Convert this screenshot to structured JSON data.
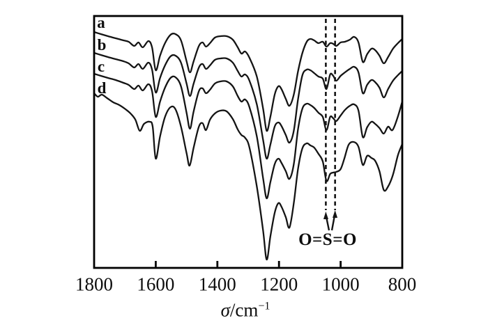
{
  "figure": {
    "background": "#ffffff",
    "line_color": "#141414",
    "frame_color": "#000000"
  },
  "axis": {
    "xlabel_sigma": "σ",
    "xlabel_unit": "/cm",
    "xlabel_sup": "−1",
    "ticks": [
      {
        "value": 1800,
        "label": "1800"
      },
      {
        "value": 1600,
        "label": "1600"
      },
      {
        "value": 1400,
        "label": "1400"
      },
      {
        "value": 1200,
        "label": "1200"
      },
      {
        "value": 1000,
        "label": "1000"
      },
      {
        "value": 800,
        "label": "800"
      }
    ]
  },
  "annotation": {
    "label": "O=S=O",
    "dashed_wavenumbers": [
      1048,
      1018
    ]
  },
  "chart_data": {
    "type": "line",
    "title": "",
    "xlabel": "σ/cm⁻¹",
    "ylabel": "",
    "x_axis": {
      "min": 800,
      "max": 1800,
      "reversed": true,
      "ticks": [
        1800,
        1600,
        1400,
        1200,
        1000,
        800
      ]
    },
    "y_axis": "none shown (transmittance, arbitrary units; curves vertically offset/stacked)",
    "grid": false,
    "legend_position": "curve labels a–d at upper left, inside plot",
    "annotations": {
      "dashed_lines_cm1": [
        1048,
        1018
      ],
      "label": "O=S=O",
      "arrows": "two arrows from label up to dashed lines"
    },
    "point_format": "[wavenumber_cm-1, y_px_from_top_of_image; plot frame top=23, bottom=385 (lower = stronger absorption)]",
    "series": [
      {
        "name": "a",
        "label_pos": [
          145,
          33
        ],
        "points": [
          [
            1800,
            46
          ],
          [
            1778,
            49
          ],
          [
            1755,
            52
          ],
          [
            1730,
            55
          ],
          [
            1705,
            58
          ],
          [
            1688,
            60
          ],
          [
            1670,
            66
          ],
          [
            1656,
            61
          ],
          [
            1642,
            68
          ],
          [
            1624,
            59
          ],
          [
            1612,
            68
          ],
          [
            1600,
            101
          ],
          [
            1586,
            80
          ],
          [
            1570,
            62
          ],
          [
            1552,
            50
          ],
          [
            1536,
            49
          ],
          [
            1518,
            58
          ],
          [
            1500,
            88
          ],
          [
            1489,
            104
          ],
          [
            1477,
            88
          ],
          [
            1460,
            66
          ],
          [
            1448,
            61
          ],
          [
            1437,
            67
          ],
          [
            1424,
            62
          ],
          [
            1408,
            54
          ],
          [
            1390,
            52
          ],
          [
            1370,
            52
          ],
          [
            1350,
            57
          ],
          [
            1334,
            68
          ],
          [
            1322,
            77
          ],
          [
            1310,
            74
          ],
          [
            1296,
            83
          ],
          [
            1272,
            110
          ],
          [
            1252,
            155
          ],
          [
            1240,
            188
          ],
          [
            1228,
            168
          ],
          [
            1214,
            136
          ],
          [
            1202,
            124
          ],
          [
            1192,
            128
          ],
          [
            1178,
            142
          ],
          [
            1166,
            152
          ],
          [
            1152,
            136
          ],
          [
            1138,
            102
          ],
          [
            1124,
            76
          ],
          [
            1110,
            60
          ],
          [
            1098,
            56
          ],
          [
            1086,
            58
          ],
          [
            1072,
            62
          ],
          [
            1058,
            60
          ],
          [
            1046,
            67
          ],
          [
            1034,
            62
          ],
          [
            1024,
            63
          ],
          [
            1014,
            66
          ],
          [
            1000,
            61
          ],
          [
            986,
            60
          ],
          [
            970,
            57
          ],
          [
            956,
            53
          ],
          [
            942,
            61
          ],
          [
            928,
            89
          ],
          [
            914,
            78
          ],
          [
            900,
            70
          ],
          [
            888,
            72
          ],
          [
            874,
            80
          ],
          [
            860,
            91
          ],
          [
            846,
            82
          ],
          [
            830,
            70
          ],
          [
            814,
            62
          ],
          [
            800,
            56
          ]
        ]
      },
      {
        "name": "b",
        "label_pos": [
          146,
          65
        ],
        "points": [
          [
            1800,
            76
          ],
          [
            1778,
            79
          ],
          [
            1755,
            82
          ],
          [
            1730,
            85
          ],
          [
            1705,
            88
          ],
          [
            1688,
            91
          ],
          [
            1670,
            97
          ],
          [
            1656,
            92
          ],
          [
            1642,
            99
          ],
          [
            1624,
            90
          ],
          [
            1612,
            100
          ],
          [
            1600,
            133
          ],
          [
            1586,
            112
          ],
          [
            1570,
            94
          ],
          [
            1552,
            81
          ],
          [
            1536,
            80
          ],
          [
            1518,
            90
          ],
          [
            1500,
            120
          ],
          [
            1489,
            138
          ],
          [
            1477,
            120
          ],
          [
            1460,
            97
          ],
          [
            1448,
            92
          ],
          [
            1437,
            99
          ],
          [
            1424,
            94
          ],
          [
            1408,
            86
          ],
          [
            1390,
            84
          ],
          [
            1370,
            84
          ],
          [
            1350,
            90
          ],
          [
            1334,
            102
          ],
          [
            1322,
            110
          ],
          [
            1310,
            107
          ],
          [
            1296,
            116
          ],
          [
            1272,
            150
          ],
          [
            1252,
            200
          ],
          [
            1240,
            228
          ],
          [
            1228,
            208
          ],
          [
            1214,
            182
          ],
          [
            1202,
            176
          ],
          [
            1192,
            181
          ],
          [
            1178,
            194
          ],
          [
            1166,
            205
          ],
          [
            1152,
            188
          ],
          [
            1138,
            142
          ],
          [
            1124,
            108
          ],
          [
            1110,
            100
          ],
          [
            1098,
            101
          ],
          [
            1086,
            105
          ],
          [
            1072,
            110
          ],
          [
            1058,
            113
          ],
          [
            1046,
            128
          ],
          [
            1034,
            107
          ],
          [
            1024,
            109
          ],
          [
            1014,
            116
          ],
          [
            1000,
            109
          ],
          [
            986,
            104
          ],
          [
            970,
            99
          ],
          [
            956,
            96
          ],
          [
            942,
            104
          ],
          [
            928,
            134
          ],
          [
            914,
            122
          ],
          [
            900,
            115
          ],
          [
            888,
            118
          ],
          [
            874,
            126
          ],
          [
            860,
            140
          ],
          [
            846,
            128
          ],
          [
            830,
            116
          ],
          [
            814,
            108
          ],
          [
            800,
            102
          ]
        ]
      },
      {
        "name": "c",
        "label_pos": [
          145,
          96
        ],
        "points": [
          [
            1800,
            106
          ],
          [
            1778,
            109
          ],
          [
            1755,
            112
          ],
          [
            1730,
            115
          ],
          [
            1705,
            119
          ],
          [
            1688,
            122
          ],
          [
            1670,
            128
          ],
          [
            1656,
            123
          ],
          [
            1642,
            130
          ],
          [
            1624,
            121
          ],
          [
            1612,
            131
          ],
          [
            1600,
            168
          ],
          [
            1586,
            146
          ],
          [
            1570,
            126
          ],
          [
            1552,
            112
          ],
          [
            1536,
            111
          ],
          [
            1518,
            124
          ],
          [
            1500,
            162
          ],
          [
            1489,
            185
          ],
          [
            1477,
            160
          ],
          [
            1460,
            131
          ],
          [
            1448,
            127
          ],
          [
            1437,
            134
          ],
          [
            1424,
            129
          ],
          [
            1408,
            120
          ],
          [
            1390,
            117
          ],
          [
            1370,
            117
          ],
          [
            1350,
            124
          ],
          [
            1334,
            138
          ],
          [
            1322,
            146
          ],
          [
            1310,
            143
          ],
          [
            1296,
            154
          ],
          [
            1272,
            196
          ],
          [
            1252,
            255
          ],
          [
            1240,
            285
          ],
          [
            1228,
            262
          ],
          [
            1214,
            236
          ],
          [
            1202,
            228
          ],
          [
            1192,
            234
          ],
          [
            1178,
            246
          ],
          [
            1166,
            257
          ],
          [
            1152,
            236
          ],
          [
            1138,
            185
          ],
          [
            1124,
            156
          ],
          [
            1110,
            149
          ],
          [
            1098,
            151
          ],
          [
            1086,
            155
          ],
          [
            1072,
            162
          ],
          [
            1058,
            168
          ],
          [
            1046,
            187
          ],
          [
            1034,
            168
          ],
          [
            1024,
            170
          ],
          [
            1014,
            174
          ],
          [
            1000,
            166
          ],
          [
            986,
            158
          ],
          [
            970,
            152
          ],
          [
            956,
            150
          ],
          [
            942,
            159
          ],
          [
            928,
            197
          ],
          [
            914,
            183
          ],
          [
            900,
            175
          ],
          [
            888,
            178
          ],
          [
            874,
            184
          ],
          [
            860,
            192
          ],
          [
            846,
            182
          ],
          [
            832,
            187
          ],
          [
            816,
            170
          ],
          [
            800,
            146
          ]
        ]
      },
      {
        "name": "d",
        "label_pos": [
          146,
          127
        ],
        "points": [
          [
            1800,
            134
          ],
          [
            1788,
            139
          ],
          [
            1775,
            136
          ],
          [
            1758,
            141
          ],
          [
            1738,
            147
          ],
          [
            1718,
            151
          ],
          [
            1698,
            157
          ],
          [
            1682,
            163
          ],
          [
            1666,
            172
          ],
          [
            1652,
            188
          ],
          [
            1638,
            178
          ],
          [
            1620,
            175
          ],
          [
            1610,
            182
          ],
          [
            1600,
            228
          ],
          [
            1586,
            196
          ],
          [
            1570,
            168
          ],
          [
            1552,
            154
          ],
          [
            1536,
            157
          ],
          [
            1518,
            182
          ],
          [
            1500,
            220
          ],
          [
            1490,
            238
          ],
          [
            1477,
            212
          ],
          [
            1460,
            182
          ],
          [
            1448,
            177
          ],
          [
            1437,
            187
          ],
          [
            1424,
            172
          ],
          [
            1408,
            163
          ],
          [
            1390,
            159
          ],
          [
            1370,
            160
          ],
          [
            1350,
            171
          ],
          [
            1334,
            186
          ],
          [
            1322,
            194
          ],
          [
            1310,
            198
          ],
          [
            1296,
            212
          ],
          [
            1272,
            268
          ],
          [
            1252,
            330
          ],
          [
            1240,
            373
          ],
          [
            1228,
            340
          ],
          [
            1214,
            306
          ],
          [
            1202,
            292
          ],
          [
            1192,
            297
          ],
          [
            1178,
            312
          ],
          [
            1166,
            327
          ],
          [
            1152,
            292
          ],
          [
            1138,
            242
          ],
          [
            1124,
            213
          ],
          [
            1110,
            206
          ],
          [
            1098,
            209
          ],
          [
            1086,
            212
          ],
          [
            1072,
            221
          ],
          [
            1058,
            232
          ],
          [
            1046,
            260
          ],
          [
            1034,
            250
          ],
          [
            1024,
            248
          ],
          [
            1014,
            247
          ],
          [
            1000,
            243
          ],
          [
            988,
            228
          ],
          [
            974,
            208
          ],
          [
            958,
            204
          ],
          [
            942,
            211
          ],
          [
            928,
            237
          ],
          [
            914,
            224
          ],
          [
            900,
            227
          ],
          [
            888,
            231
          ],
          [
            874,
            246
          ],
          [
            860,
            273
          ],
          [
            846,
            268
          ],
          [
            830,
            251
          ],
          [
            814,
            223
          ],
          [
            800,
            207
          ]
        ]
      }
    ]
  }
}
